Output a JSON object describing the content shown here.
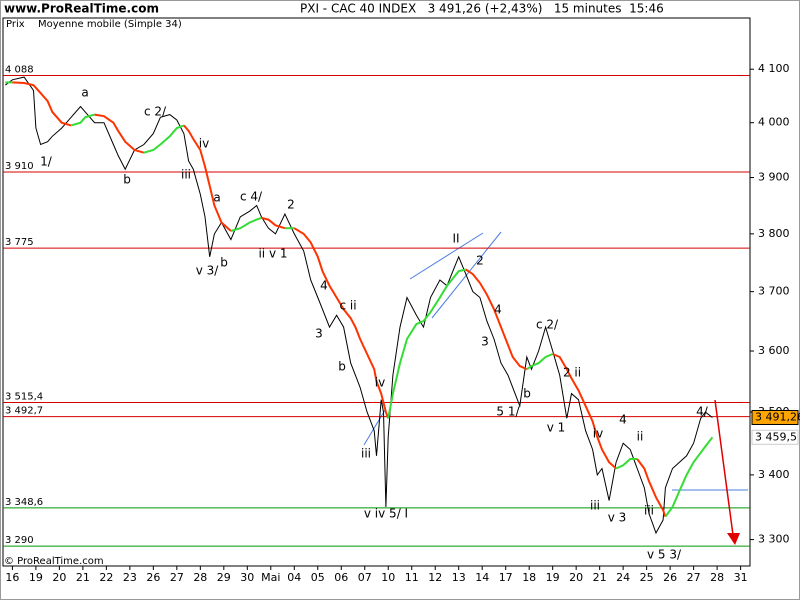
{
  "chart_data": {
    "type": "line",
    "site": "www.ProRealTime.com",
    "title": "PXI - CAC 40 INDEX   3 491,26 (+2,43%)   15 minutes  15:46",
    "copyright": "© ProRealTime.com",
    "log_scale": true,
    "xlim": [
      -0.4,
      31.4
    ],
    "ylim": [
      3260,
      4198
    ],
    "xticks": [
      {
        "value": 0,
        "label": "16"
      },
      {
        "value": 1,
        "label": "19"
      },
      {
        "value": 2,
        "label": "20"
      },
      {
        "value": 3,
        "label": "21"
      },
      {
        "value": 4,
        "label": "22"
      },
      {
        "value": 5,
        "label": "23"
      },
      {
        "value": 6,
        "label": "26"
      },
      {
        "value": 7,
        "label": "27"
      },
      {
        "value": 8,
        "label": "28"
      },
      {
        "value": 9,
        "label": "29"
      },
      {
        "value": 10,
        "label": "30"
      },
      {
        "value": 11,
        "label": "Mai"
      },
      {
        "value": 12,
        "label": "04"
      },
      {
        "value": 13,
        "label": "05"
      },
      {
        "value": 14,
        "label": "06"
      },
      {
        "value": 15,
        "label": "07"
      },
      {
        "value": 16,
        "label": "10"
      },
      {
        "value": 17,
        "label": "11"
      },
      {
        "value": 18,
        "label": "12"
      },
      {
        "value": 19,
        "label": "13"
      },
      {
        "value": 20,
        "label": "14"
      },
      {
        "value": 21,
        "label": "17"
      },
      {
        "value": 22,
        "label": "18"
      },
      {
        "value": 23,
        "label": "19"
      },
      {
        "value": 24,
        "label": "20"
      },
      {
        "value": 25,
        "label": "21"
      },
      {
        "value": 26,
        "label": "24"
      },
      {
        "value": 27,
        "label": "25"
      },
      {
        "value": 28,
        "label": "26"
      },
      {
        "value": 29,
        "label": "27"
      },
      {
        "value": 30,
        "label": "28"
      },
      {
        "value": 31,
        "label": "31"
      }
    ],
    "yticks": [
      {
        "value": 3300,
        "label": "3 300"
      },
      {
        "value": 3400,
        "label": "3 400"
      },
      {
        "value": 3500,
        "label": "3 500"
      },
      {
        "value": 3600,
        "label": "3 600"
      },
      {
        "value": 3700,
        "label": "3 700"
      },
      {
        "value": 3800,
        "label": "3 800"
      },
      {
        "value": 3900,
        "label": "3 900"
      },
      {
        "value": 4000,
        "label": "4 000"
      },
      {
        "value": 4100,
        "label": "4 100"
      }
    ],
    "levels": [
      {
        "value": 4088,
        "label": "4 088",
        "color": "#d40000"
      },
      {
        "value": 3910,
        "label": "3 910",
        "color": "#d40000"
      },
      {
        "value": 3775,
        "label": "3 775",
        "color": "#d40000"
      },
      {
        "value": 3515.4,
        "label": "3 515,4",
        "color": "#d40000"
      },
      {
        "value": 3492.7,
        "label": "3 492,7",
        "color": "#d40000"
      },
      {
        "value": 3348.6,
        "label": "3 348,6",
        "color": "#009900"
      },
      {
        "value": 3290,
        "label": "3 290",
        "color": "#009900"
      }
    ],
    "x": [
      -0.3,
      0,
      0.5,
      0.9,
      1.0,
      1.2,
      1.5,
      1.7,
      2.1,
      2.5,
      2.9,
      3.1,
      3.5,
      3.9,
      4.3,
      4.5,
      4.8,
      5.2,
      5.6,
      6.0,
      6.3,
      6.7,
      7.0,
      7.3,
      7.5,
      7.7,
      8.0,
      8.2,
      8.4,
      8.6,
      8.9,
      9.3,
      9.7,
      10.1,
      10.4,
      10.6,
      10.9,
      11.2,
      11.6,
      12.0,
      12.4,
      12.7,
      13.0,
      13.2,
      13.5,
      13.8,
      14.1,
      14.4,
      14.6,
      14.8,
      15.1,
      15.4,
      15.5,
      15.7,
      15.8,
      15.9,
      16.0,
      16.2,
      16.5,
      16.8,
      17.2,
      17.5,
      17.8,
      18.2,
      18.5,
      18.8,
      19.0,
      19.3,
      19.6,
      19.9,
      20.2,
      20.5,
      20.8,
      21.1,
      21.3,
      21.6,
      21.9,
      22.1,
      22.4,
      22.7,
      23.0,
      23.3,
      23.6,
      23.8,
      24.1,
      24.4,
      24.7,
      24.9,
      25.1,
      25.4,
      25.7,
      26.0,
      26.3,
      26.6,
      26.9,
      27.1,
      27.4,
      27.7,
      27.8,
      28.1,
      28.4,
      28.7,
      29.0,
      29.3,
      29.5,
      29.8
    ],
    "series": [
      {
        "name": "Prix",
        "color": "#000000",
        "values": [
          4070,
          4080,
          4085,
          4060,
          3990,
          3960,
          3965,
          3975,
          3990,
          4010,
          4030,
          4020,
          4000,
          4000,
          3960,
          3940,
          3915,
          3950,
          3960,
          3980,
          4010,
          4015,
          4005,
          3980,
          3930,
          3915,
          3870,
          3830,
          3760,
          3800,
          3820,
          3790,
          3830,
          3840,
          3850,
          3830,
          3810,
          3800,
          3835,
          3800,
          3770,
          3720,
          3690,
          3670,
          3640,
          3660,
          3640,
          3580,
          3560,
          3540,
          3500,
          3470,
          3430,
          3520,
          3500,
          3350,
          3460,
          3560,
          3640,
          3690,
          3660,
          3640,
          3690,
          3720,
          3710,
          3740,
          3760,
          3730,
          3700,
          3690,
          3650,
          3620,
          3580,
          3560,
          3540,
          3510,
          3590,
          3570,
          3600,
          3640,
          3600,
          3560,
          3490,
          3530,
          3520,
          3470,
          3440,
          3400,
          3410,
          3360,
          3420,
          3450,
          3440,
          3410,
          3380,
          3340,
          3310,
          3330,
          3380,
          3410,
          3420,
          3430,
          3450,
          3490,
          3500,
          3491.26
        ]
      },
      {
        "name": "Moyenne mobile (Simple 34)",
        "color": "#ff3300",
        "up_color": "#33dd33",
        "values": [
          4075,
          4075,
          4074,
          4070,
          4065,
          4055,
          4040,
          4020,
          4000,
          3995,
          4000,
          4010,
          4015,
          4012,
          4000,
          3985,
          3965,
          3950,
          3945,
          3950,
          3960,
          3975,
          3990,
          3995,
          3985,
          3970,
          3950,
          3920,
          3885,
          3850,
          3820,
          3805,
          3810,
          3820,
          3825,
          3828,
          3825,
          3815,
          3810,
          3810,
          3800,
          3785,
          3760,
          3735,
          3710,
          3690,
          3670,
          3655,
          3640,
          3620,
          3595,
          3570,
          3550,
          3530,
          3515,
          3500,
          3490,
          3530,
          3580,
          3620,
          3645,
          3650,
          3665,
          3690,
          3710,
          3725,
          3735,
          3738,
          3730,
          3715,
          3695,
          3670,
          3640,
          3610,
          3590,
          3575,
          3570,
          3575,
          3580,
          3590,
          3595,
          3590,
          3570,
          3555,
          3535,
          3510,
          3485,
          3460,
          3440,
          3420,
          3410,
          3415,
          3425,
          3425,
          3410,
          3390,
          3365,
          3345,
          3335,
          3350,
          3375,
          3400,
          3420,
          3435,
          3445,
          3459.5
        ]
      }
    ],
    "last_price": {
      "value": 3491.26,
      "label": "3 491,26",
      "color": "#ffa500"
    },
    "ma_last": {
      "value": 3459.5,
      "label": "3 459,5"
    },
    "annotations": [
      "1/",
      "a",
      "b",
      "c 2/",
      "iv",
      "iii",
      "a",
      "c 4/",
      "v 3/",
      "b",
      "ii v 1",
      "2",
      "4",
      "c ii",
      "3",
      "b",
      "iv",
      "iii",
      "v iv 5/ I",
      "II",
      "2",
      "4",
      "3",
      "b",
      "5 1/",
      "c 2/",
      "2 ii",
      "v 1",
      "iv",
      "4",
      "ii",
      "iii",
      "v 3",
      "iii",
      "v 5 3/",
      "4/"
    ]
  }
}
